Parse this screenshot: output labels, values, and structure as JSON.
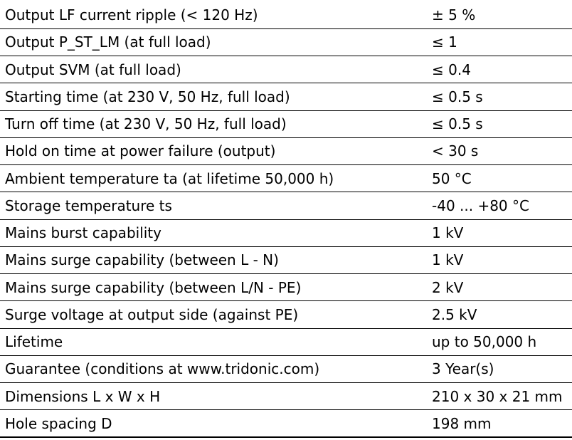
{
  "specs": [
    {
      "parameter": "Output LF current ripple (< 120 Hz)",
      "value": "± 5 %"
    },
    {
      "parameter": "Output P_ST_LM (at full load)",
      "value": "≤ 1"
    },
    {
      "parameter": "Output SVM (at full load)",
      "value": "≤ 0.4"
    },
    {
      "parameter": "Starting time (at 230 V, 50 Hz, full load)",
      "value": "≤ 0.5 s"
    },
    {
      "parameter": "Turn off time (at 230 V, 50 Hz, full load)",
      "value": "≤ 0.5 s"
    },
    {
      "parameter": "Hold on time at power failure (output)",
      "value": "< 30 s"
    },
    {
      "parameter": "Ambient temperature ta (at lifetime 50,000 h)",
      "value": "50 °C"
    },
    {
      "parameter": "Storage temperature ts",
      "value": "-40 ... +80 °C"
    },
    {
      "parameter": "Mains burst capability",
      "value": "1 kV"
    },
    {
      "parameter": "Mains surge capability (between L - N)",
      "value": "1 kV"
    },
    {
      "parameter": "Mains surge capability (between L/N - PE)",
      "value": "2 kV"
    },
    {
      "parameter": "Surge voltage at output side (against PE)",
      "value": "2.5 kV"
    },
    {
      "parameter": "Lifetime",
      "value": "up to 50,000 h"
    },
    {
      "parameter": "Guarantee (conditions at www.tridonic.com)",
      "value": "3 Year(s)"
    },
    {
      "parameter": "Dimensions L x W x H",
      "value": "210 x 30 x 21 mm"
    },
    {
      "parameter": "Hole spacing D",
      "value": "198 mm"
    }
  ]
}
